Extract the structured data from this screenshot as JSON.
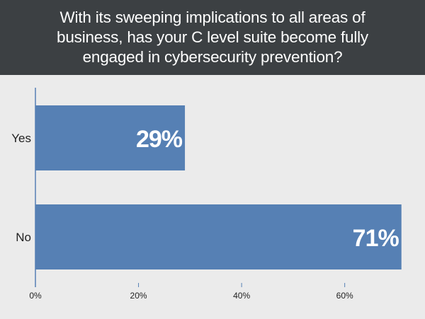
{
  "title": {
    "lines": [
      "With its sweeping implications to all areas of",
      "business, has your C level suite become fully",
      "engaged in cybersecurity prevention?"
    ]
  },
  "chart_data": {
    "type": "bar",
    "orientation": "horizontal",
    "categories": [
      "Yes",
      "No"
    ],
    "values": [
      29,
      71
    ],
    "data_labels": [
      "29%",
      "71%"
    ],
    "xlim": [
      0,
      72
    ],
    "x_ticks": [
      "0%",
      "20%",
      "40%",
      "60%"
    ],
    "x_tick_values": [
      0,
      20,
      40,
      60
    ],
    "grid": false,
    "legend": "none"
  },
  "colors": {
    "bar": "#5680b4",
    "header_bg": "#3c4043",
    "background": "#ebebeb",
    "axis": "#5680b4",
    "label": "#222222",
    "data_label": "#ffffff"
  }
}
